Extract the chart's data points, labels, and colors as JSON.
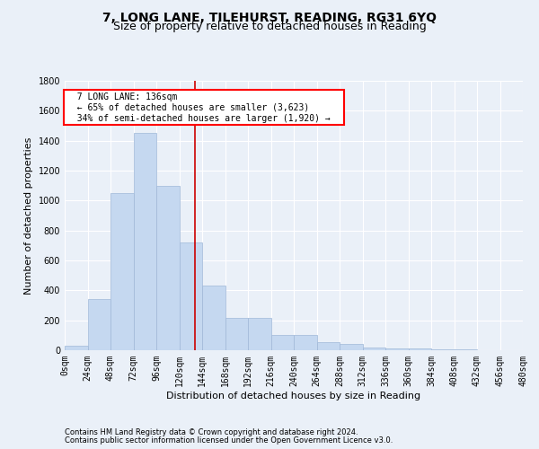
{
  "title": "7, LONG LANE, TILEHURST, READING, RG31 6YQ",
  "subtitle": "Size of property relative to detached houses in Reading",
  "xlabel": "Distribution of detached houses by size in Reading",
  "ylabel": "Number of detached properties",
  "footnote1": "Contains HM Land Registry data © Crown copyright and database right 2024.",
  "footnote2": "Contains public sector information licensed under the Open Government Licence v3.0.",
  "annotation_line1": "7 LONG LANE: 136sqm",
  "annotation_line2": "← 65% of detached houses are smaller (3,623)",
  "annotation_line3": "34% of semi-detached houses are larger (1,920) →",
  "bar_color": "#c5d8f0",
  "bar_edge_color": "#a0b8d8",
  "marker_value": 136,
  "marker_color": "#cc0000",
  "bin_edges": [
    0,
    24,
    48,
    72,
    96,
    120,
    144,
    168,
    192,
    216,
    240,
    264,
    288,
    312,
    336,
    360,
    384,
    408,
    432,
    456,
    480
  ],
  "bar_heights": [
    30,
    340,
    1050,
    1450,
    1100,
    720,
    430,
    215,
    215,
    100,
    100,
    55,
    45,
    20,
    15,
    10,
    8,
    5,
    3,
    2
  ],
  "ylim": [
    0,
    1800
  ],
  "yticks": [
    0,
    200,
    400,
    600,
    800,
    1000,
    1200,
    1400,
    1600,
    1800
  ],
  "background_color": "#eaf0f8",
  "plot_bg_color": "#eaf0f8",
  "grid_color": "#ffffff",
  "title_fontsize": 10,
  "subtitle_fontsize": 9,
  "axis_label_fontsize": 8,
  "tick_fontsize": 7
}
